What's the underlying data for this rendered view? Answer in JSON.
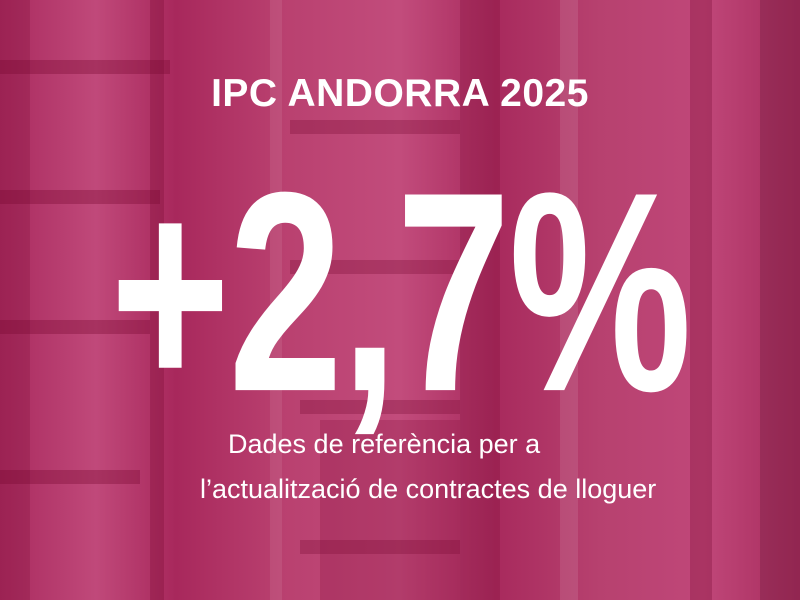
{
  "title": "IPC ANDORRA 2025",
  "headline_value": "+2,7%",
  "subtitle_lines": [
    "Dades de referència per a",
    "l’actualització de contractes de lloguer"
  ],
  "colors": {
    "overlay": "#b8386c",
    "text": "#ffffff"
  }
}
